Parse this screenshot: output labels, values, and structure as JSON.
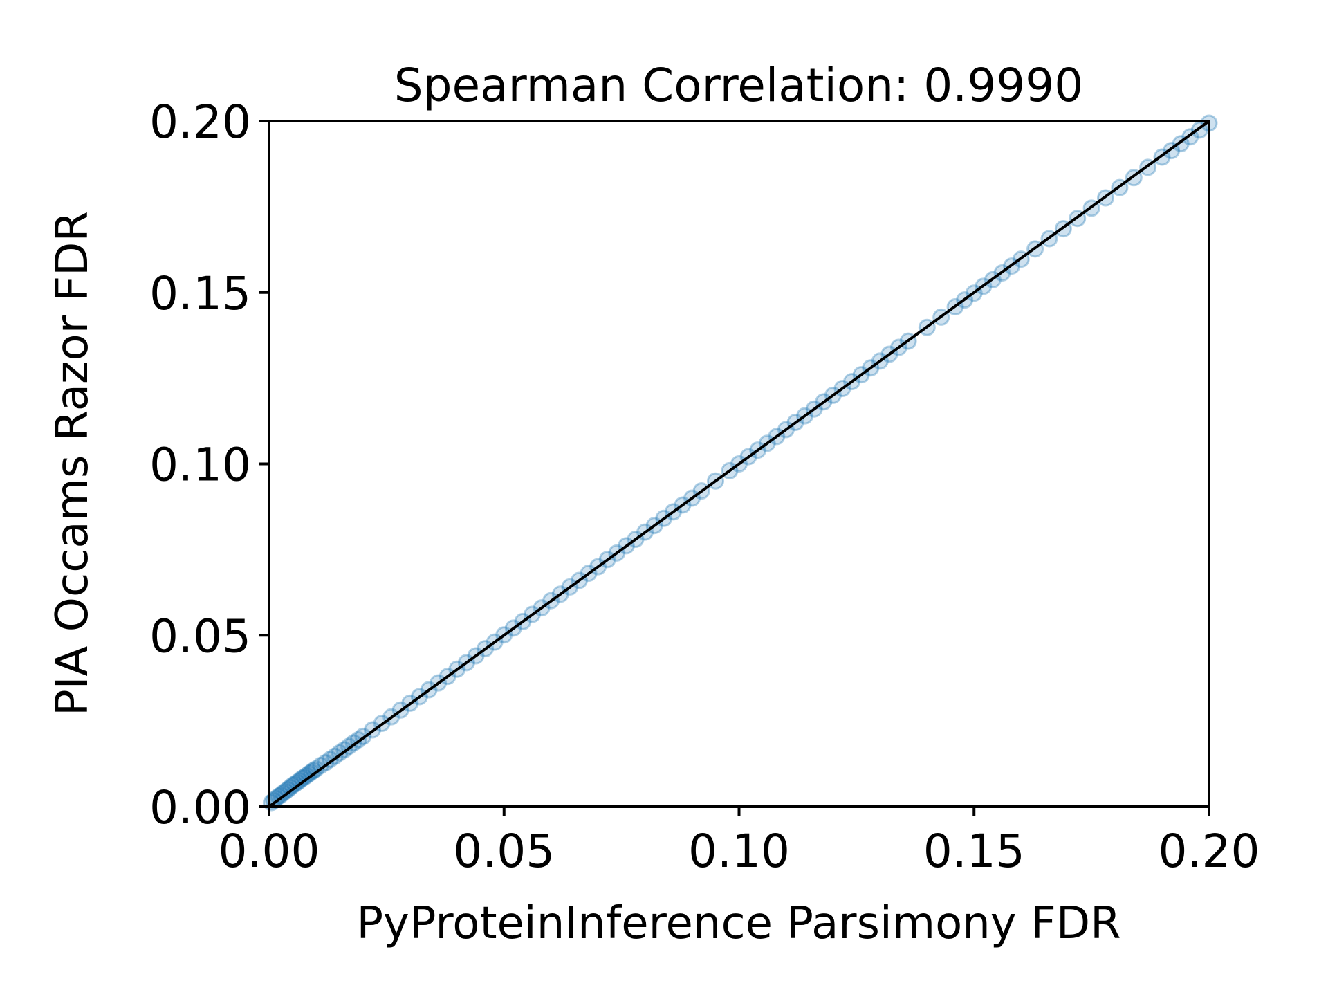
{
  "chart_data": {
    "type": "scatter",
    "title": "Spearman Correlation: 0.9990",
    "xlabel": "PyProteinInference Parsimony FDR",
    "ylabel": "PIA Occams Razor FDR",
    "xlim": [
      0.0,
      0.2
    ],
    "ylim": [
      0.0,
      0.2
    ],
    "xticks": [
      "0.00",
      "0.05",
      "0.10",
      "0.15",
      "0.20"
    ],
    "yticks": [
      "0.00",
      "0.05",
      "0.10",
      "0.15",
      "0.20"
    ],
    "grid": false,
    "legend": "none",
    "point_color": "#1f77b4",
    "reference_line": {
      "from": [
        0.0,
        0.0
      ],
      "to": [
        0.2,
        0.2
      ],
      "color": "#000000"
    },
    "series": [
      {
        "x": [
          0.0005,
          0.001,
          0.0015,
          0.002,
          0.0025,
          0.003,
          0.0035,
          0.004,
          0.0045,
          0.005,
          0.0055,
          0.006,
          0.0065,
          0.007,
          0.0075,
          0.008,
          0.0085,
          0.009,
          0.0095,
          0.01,
          0.011,
          0.012,
          0.013,
          0.014,
          0.015,
          0.016,
          0.017,
          0.018,
          0.019,
          0.02,
          0.022,
          0.024,
          0.026,
          0.028,
          0.03,
          0.032,
          0.034,
          0.036,
          0.038,
          0.04,
          0.042,
          0.044,
          0.046,
          0.048,
          0.05,
          0.052,
          0.054,
          0.056,
          0.058,
          0.06,
          0.062,
          0.064,
          0.066,
          0.068,
          0.07,
          0.072,
          0.074,
          0.076,
          0.078,
          0.08,
          0.082,
          0.084,
          0.086,
          0.088,
          0.09,
          0.092,
          0.095,
          0.098,
          0.1,
          0.102,
          0.104,
          0.106,
          0.108,
          0.11,
          0.112,
          0.114,
          0.116,
          0.118,
          0.12,
          0.122,
          0.124,
          0.126,
          0.128,
          0.13,
          0.132,
          0.134,
          0.136,
          0.14,
          0.143,
          0.146,
          0.148,
          0.15,
          0.152,
          0.154,
          0.156,
          0.158,
          0.16,
          0.163,
          0.166,
          0.169,
          0.172,
          0.175,
          0.178,
          0.181,
          0.184,
          0.187,
          0.19,
          0.192,
          0.194,
          0.196,
          0.198,
          0.2
        ],
        "y": [
          0.0012,
          0.0018,
          0.0024,
          0.003,
          0.0034,
          0.004,
          0.0045,
          0.005,
          0.0056,
          0.0062,
          0.0066,
          0.0071,
          0.0076,
          0.0082,
          0.0086,
          0.0091,
          0.0096,
          0.0101,
          0.0106,
          0.011,
          0.012,
          0.0128,
          0.0138,
          0.0147,
          0.0157,
          0.0166,
          0.0176,
          0.0186,
          0.0195,
          0.0205,
          0.0224,
          0.0243,
          0.0262,
          0.0282,
          0.0302,
          0.0321,
          0.0341,
          0.0361,
          0.038,
          0.0401,
          0.042,
          0.044,
          0.0461,
          0.048,
          0.0501,
          0.0521,
          0.054,
          0.0561,
          0.058,
          0.0601,
          0.062,
          0.0641,
          0.066,
          0.0681,
          0.07,
          0.0721,
          0.074,
          0.0761,
          0.078,
          0.0801,
          0.082,
          0.0841,
          0.086,
          0.088,
          0.09,
          0.0921,
          0.095,
          0.098,
          0.1,
          0.1021,
          0.104,
          0.106,
          0.108,
          0.11,
          0.1121,
          0.114,
          0.116,
          0.1181,
          0.12,
          0.122,
          0.124,
          0.126,
          0.128,
          0.13,
          0.132,
          0.134,
          0.1358,
          0.1398,
          0.1428,
          0.1458,
          0.1478,
          0.1498,
          0.1518,
          0.1537,
          0.1557,
          0.1577,
          0.1597,
          0.1627,
          0.1657,
          0.1686,
          0.1716,
          0.1746,
          0.1776,
          0.1806,
          0.1835,
          0.1865,
          0.1895,
          0.1914,
          0.1934,
          0.1954,
          0.1974,
          0.1994
        ]
      }
    ]
  }
}
